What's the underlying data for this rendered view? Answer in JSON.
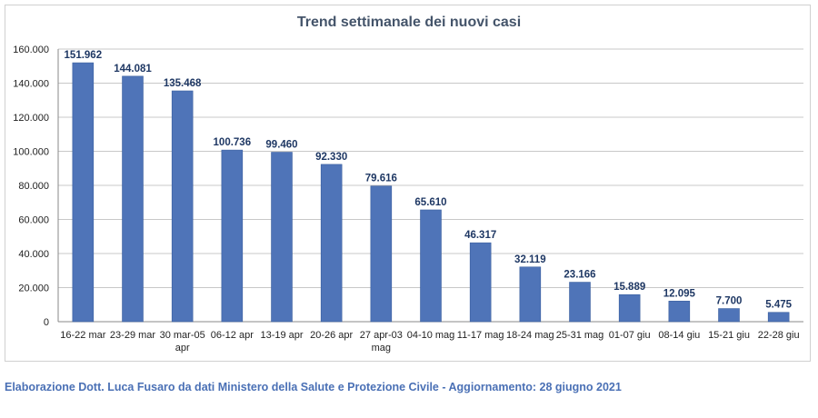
{
  "chart_data": {
    "type": "bar",
    "title": "Trend settimanale dei nuovi casi",
    "xlabel": "",
    "ylabel": "",
    "ylim": [
      0,
      160000
    ],
    "y_ticks": [
      0,
      20000,
      40000,
      60000,
      80000,
      100000,
      120000,
      140000,
      160000
    ],
    "y_tick_labels": [
      "0",
      "20.000",
      "40.000",
      "60.000",
      "80.000",
      "100.000",
      "120.000",
      "140.000",
      "160.000"
    ],
    "grid": true,
    "legend": "none",
    "bar_color": "#4f74b8",
    "categories": [
      "16-22 mar",
      "23-29 mar",
      "30 mar-05 apr",
      "06-12 apr",
      "13-19 apr",
      "20-26 apr",
      "27 apr-03 mag",
      "04-10 mag",
      "11-17 mag",
      "18-24 mag",
      "25-31 mag",
      "01-07 giu",
      "08-14 giu",
      "15-21 giu",
      "22-28 giu"
    ],
    "values": [
      151962,
      144081,
      135468,
      100736,
      99460,
      92330,
      79616,
      65610,
      46317,
      32119,
      23166,
      15889,
      12095,
      7700,
      5475
    ],
    "value_labels": [
      "151.962",
      "144.081",
      "135.468",
      "100.736",
      "99.460",
      "92.330",
      "79.616",
      "65.610",
      "46.317",
      "32.119",
      "23.166",
      "15.889",
      "12.095",
      "7.700",
      "5.475"
    ]
  },
  "footer": {
    "credit": "Elaborazione Dott. Luca Fusaro da dati Ministero della Salute e Protezione Civile - Aggiornamento: 28 giugno 2021"
  },
  "colors": {
    "title": "#44546a",
    "credit": "#4a70b5",
    "data_label": "#1f3864"
  }
}
